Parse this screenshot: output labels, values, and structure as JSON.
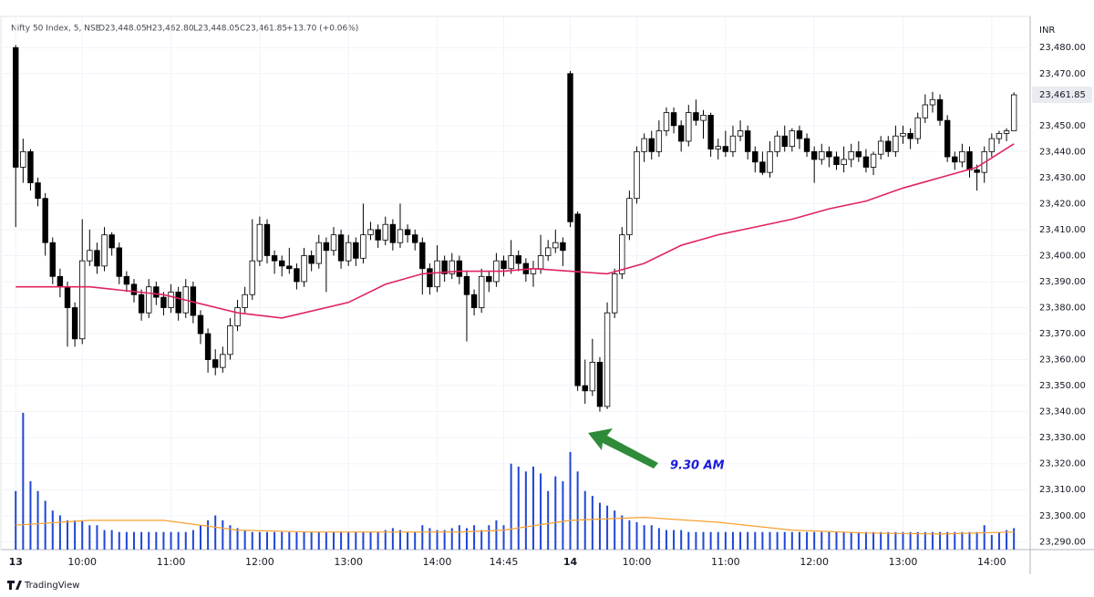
{
  "chart_data": {
    "type": "candlestick",
    "title": "Nifty 50 Index, 5, NSE",
    "header_values": [
      "O23,448.05",
      "H23,462.80",
      "L23,448.05",
      "C23,461.85",
      "+13.70 (+0.06%)"
    ],
    "currency": "INR",
    "footer": "TradingView",
    "annotation": {
      "text": "9.30 AM",
      "color": "#1a1adb",
      "arrow_color": "#2e8b3a"
    },
    "up_color": "#ffffff",
    "down_color": "#000000",
    "volume_color": "#2046d8",
    "xlim": [
      -2,
      137.2
    ],
    "ylim": [
      23288,
      23492
    ],
    "grid": true,
    "xticks": [
      {
        "value": 0,
        "label": "13"
      },
      {
        "value": 9,
        "label": "10:00"
      },
      {
        "value": 21,
        "label": "11:00"
      },
      {
        "value": 33,
        "label": "12:00"
      },
      {
        "value": 45,
        "label": "13:00"
      },
      {
        "value": 57,
        "label": "14:00"
      },
      {
        "value": 66,
        "label": "14:45"
      },
      {
        "value": 75,
        "label": "14"
      },
      {
        "value": 84,
        "label": "10:00"
      },
      {
        "value": 96,
        "label": "11:00"
      },
      {
        "value": 108,
        "label": "12:00"
      },
      {
        "value": 120,
        "label": "13:00"
      },
      {
        "value": 132,
        "label": "14:00"
      }
    ],
    "yticks": [
      {
        "value": 23290,
        "label": "23,290.00"
      },
      {
        "value": 23300,
        "label": "23,300.00"
      },
      {
        "value": 23310,
        "label": "23,310.00"
      },
      {
        "value": 23320,
        "label": "23,320.00"
      },
      {
        "value": 23330,
        "label": "23,330.00"
      },
      {
        "value": 23340,
        "label": "23,340.00"
      },
      {
        "value": 23350,
        "label": "23,350.00"
      },
      {
        "value": 23360,
        "label": "23,360.00"
      },
      {
        "value": 23370,
        "label": "23,370.00"
      },
      {
        "value": 23380,
        "label": "23,380.00"
      },
      {
        "value": 23390,
        "label": "23,390.00"
      },
      {
        "value": 23400,
        "label": "23,400.00"
      },
      {
        "value": 23410,
        "label": "23,410.00"
      },
      {
        "value": 23420,
        "label": "23,420.00"
      },
      {
        "value": 23430,
        "label": "23,430.00"
      },
      {
        "value": 23440,
        "label": "23,440.00"
      },
      {
        "value": 23450,
        "label": "23,450.00"
      },
      {
        "value": 23470,
        "label": "23,470.00"
      },
      {
        "value": 23480,
        "label": "23,480.00"
      }
    ],
    "last_price": {
      "value": 23461.85,
      "label": "23,461.85"
    },
    "ohlc": [
      [
        23480,
        23481,
        23411,
        23434
      ],
      [
        23434,
        23445,
        23428,
        23440
      ],
      [
        23440,
        23441,
        23425,
        23428
      ],
      [
        23428,
        23430,
        23419,
        23422
      ],
      [
        23422,
        23424,
        23400,
        23405
      ],
      [
        23405,
        23407,
        23389,
        23392
      ],
      [
        23392,
        23395,
        23384,
        23388
      ],
      [
        23388,
        23390,
        23365,
        23380
      ],
      [
        23380,
        23382,
        23365,
        23368
      ],
      [
        23368,
        23414,
        23366,
        23398
      ],
      [
        23398,
        23410,
        23396,
        23402
      ],
      [
        23402,
        23405,
        23393,
        23396
      ],
      [
        23396,
        23411,
        23394,
        23408
      ],
      [
        23408,
        23409,
        23400,
        23403
      ],
      [
        23403,
        23405,
        23389,
        23392
      ],
      [
        23392,
        23394,
        23386,
        23389
      ],
      [
        23389,
        23391,
        23382,
        23385
      ],
      [
        23385,
        23387,
        23375,
        23378
      ],
      [
        23378,
        23391,
        23376,
        23388
      ],
      [
        23388,
        23390,
        23381,
        23384
      ],
      [
        23384,
        23386,
        23377,
        23380
      ],
      [
        23380,
        23389,
        23378,
        23386
      ],
      [
        23386,
        23388,
        23375,
        23378
      ],
      [
        23378,
        23391,
        23376,
        23388
      ],
      [
        23388,
        23390,
        23374,
        23377
      ],
      [
        23377,
        23379,
        23366,
        23370
      ],
      [
        23370,
        23372,
        23355,
        23360
      ],
      [
        23360,
        23364,
        23354,
        23357
      ],
      [
        23357,
        23365,
        23355,
        23362
      ],
      [
        23362,
        23376,
        23360,
        23373
      ],
      [
        23373,
        23383,
        23371,
        23380
      ],
      [
        23380,
        23388,
        23378,
        23385
      ],
      [
        23385,
        23414,
        23383,
        23398
      ],
      [
        23398,
        23415,
        23396,
        23412
      ],
      [
        23412,
        23414,
        23397,
        23400
      ],
      [
        23400,
        23402,
        23393,
        23398
      ],
      [
        23398,
        23400,
        23392,
        23396
      ],
      [
        23396,
        23403,
        23393,
        23395
      ],
      [
        23395,
        23397,
        23387,
        23390
      ],
      [
        23390,
        23403,
        23388,
        23400
      ],
      [
        23400,
        23402,
        23394,
        23397
      ],
      [
        23397,
        23408,
        23395,
        23405
      ],
      [
        23405,
        23407,
        23386,
        23402
      ],
      [
        23402,
        23411,
        23400,
        23408
      ],
      [
        23408,
        23410,
        23395,
        23398
      ],
      [
        23398,
        23408,
        23396,
        23405
      ],
      [
        23405,
        23407,
        23396,
        23399
      ],
      [
        23399,
        23420,
        23397,
        23408
      ],
      [
        23408,
        23413,
        23406,
        23410
      ],
      [
        23410,
        23412,
        23403,
        23406
      ],
      [
        23406,
        23415,
        23404,
        23412
      ],
      [
        23412,
        23414,
        23402,
        23405
      ],
      [
        23405,
        23420,
        23403,
        23410
      ],
      [
        23410,
        23412,
        23405,
        23408
      ],
      [
        23408,
        23410,
        23402,
        23405
      ],
      [
        23405,
        23407,
        23385,
        23395
      ],
      [
        23395,
        23397,
        23385,
        23388
      ],
      [
        23388,
        23404,
        23386,
        23398
      ],
      [
        23398,
        23400,
        23390,
        23393
      ],
      [
        23393,
        23401,
        23391,
        23398
      ],
      [
        23398,
        23400,
        23389,
        23392
      ],
      [
        23392,
        23394,
        23367,
        23385
      ],
      [
        23385,
        23387,
        23377,
        23380
      ],
      [
        23380,
        23395,
        23378,
        23392
      ],
      [
        23392,
        23394,
        23386,
        23390
      ],
      [
        23390,
        23401,
        23388,
        23398
      ],
      [
        23398,
        23400,
        23392,
        23395
      ],
      [
        23395,
        23406,
        23393,
        23400
      ],
      [
        23400,
        23402,
        23394,
        23397
      ],
      [
        23397,
        23399,
        23390,
        23393
      ],
      [
        23393,
        23398,
        23388,
        23395
      ],
      [
        23395,
        23408,
        23393,
        23400
      ],
      [
        23400,
        23406,
        23398,
        23403
      ],
      [
        23403,
        23410,
        23401,
        23405
      ],
      [
        23405,
        23407,
        23396,
        23402
      ],
      [
        23470,
        23471,
        23411,
        23413
      ],
      [
        23416,
        23417,
        23348,
        23350
      ],
      [
        23350,
        23360,
        23343,
        23348
      ],
      [
        23348,
        23368,
        23346,
        23359
      ],
      [
        23359,
        23361,
        23340,
        23342
      ],
      [
        23342,
        23382,
        23341,
        23378
      ],
      [
        23378,
        23395,
        23376,
        23393
      ],
      [
        23393,
        23411,
        23391,
        23408
      ],
      [
        23408,
        23425,
        23406,
        23422
      ],
      [
        23422,
        23442,
        23420,
        23440
      ],
      [
        23440,
        23447,
        23436,
        23445
      ],
      [
        23445,
        23448,
        23437,
        23440
      ],
      [
        23440,
        23452,
        23438,
        23448
      ],
      [
        23448,
        23457,
        23446,
        23455
      ],
      [
        23455,
        23457,
        23447,
        23450
      ],
      [
        23450,
        23452,
        23440,
        23444
      ],
      [
        23444,
        23458,
        23442,
        23455
      ],
      [
        23455,
        23460,
        23450,
        23452
      ],
      [
        23452,
        23456,
        23445,
        23454
      ],
      [
        23454,
        23455,
        23438,
        23441
      ],
      [
        23441,
        23445,
        23437,
        23442
      ],
      [
        23442,
        23448,
        23438,
        23440
      ],
      [
        23440,
        23450,
        23438,
        23446
      ],
      [
        23446,
        23452,
        23444,
        23448
      ],
      [
        23448,
        23450,
        23437,
        23440
      ],
      [
        23440,
        23442,
        23432,
        23436
      ],
      [
        23436,
        23440,
        23431,
        23432
      ],
      [
        23432,
        23444,
        23430,
        23440
      ],
      [
        23440,
        23448,
        23438,
        23446
      ],
      [
        23446,
        23450,
        23440,
        23442
      ],
      [
        23442,
        23449,
        23440,
        23448
      ],
      [
        23448,
        23450,
        23441,
        23445
      ],
      [
        23445,
        23447,
        23438,
        23440
      ],
      [
        23440,
        23442,
        23428,
        23437
      ],
      [
        23437,
        23443,
        23435,
        23440
      ],
      [
        23440,
        23442,
        23434,
        23438
      ],
      [
        23438,
        23440,
        23433,
        23435
      ],
      [
        23435,
        23442,
        23432,
        23437
      ],
      [
        23437,
        23443,
        23434,
        23440
      ],
      [
        23440,
        23444,
        23436,
        23438
      ],
      [
        23438,
        23441,
        23432,
        23434
      ],
      [
        23434,
        23440,
        23431,
        23439
      ],
      [
        23439,
        23446,
        23437,
        23444
      ],
      [
        23444,
        23446,
        23438,
        23440
      ],
      [
        23440,
        23450,
        23438,
        23446
      ],
      [
        23446,
        23450,
        23443,
        23447
      ],
      [
        23447,
        23449,
        23441,
        23445
      ],
      [
        23445,
        23455,
        23443,
        23453
      ],
      [
        23453,
        23462,
        23451,
        23458
      ],
      [
        23458,
        23463,
        23455,
        23460
      ],
      [
        23460,
        23462,
        23450,
        23452
      ],
      [
        23452,
        23454,
        23436,
        23438
      ],
      [
        23438,
        23440,
        23433,
        23436
      ],
      [
        23436,
        23443,
        23434,
        23440
      ],
      [
        23440,
        23442,
        23430,
        23433
      ],
      [
        23433,
        23435,
        23425,
        23432
      ],
      [
        23432,
        23442,
        23428,
        23440
      ],
      [
        23440,
        23447,
        23438,
        23445
      ],
      [
        23445,
        23448,
        23443,
        23447
      ],
      [
        23447,
        23449,
        23444,
        23448
      ],
      [
        23448.05,
        23462.8,
        23448.05,
        23461.85
      ]
    ],
    "volume": [
      60,
      140,
      70,
      60,
      50,
      40,
      35,
      30,
      30,
      30,
      25,
      25,
      20,
      20,
      18,
      18,
      18,
      18,
      18,
      18,
      18,
      18,
      18,
      18,
      20,
      25,
      30,
      35,
      30,
      25,
      22,
      20,
      18,
      18,
      18,
      18,
      18,
      18,
      18,
      18,
      18,
      18,
      18,
      18,
      18,
      18,
      18,
      18,
      18,
      18,
      20,
      22,
      20,
      18,
      18,
      25,
      22,
      20,
      20,
      22,
      25,
      22,
      25,
      20,
      25,
      30,
      25,
      88,
      85,
      80,
      85,
      78,
      60,
      75,
      70,
      100,
      80,
      60,
      55,
      48,
      45,
      40,
      35,
      30,
      28,
      25,
      25,
      22,
      20,
      20,
      20,
      18,
      18,
      18,
      18,
      18,
      18,
      18,
      18,
      18,
      18,
      18,
      18,
      18,
      18,
      18,
      18,
      18,
      18,
      18,
      18,
      18,
      18,
      18,
      18,
      18,
      18,
      18,
      18,
      18,
      18,
      18,
      18,
      18,
      18,
      18,
      18,
      18,
      18,
      18,
      18,
      25,
      15,
      18,
      20,
      22
    ],
    "ma": {
      "color": "#e0245e",
      "x": [
        0,
        10,
        20,
        30,
        36,
        45,
        50,
        55,
        60,
        66,
        70,
        75,
        80,
        85,
        90,
        95,
        100,
        105,
        110,
        115,
        120,
        125,
        130,
        135
      ],
      "values": [
        23388,
        23388,
        23385,
        23378,
        23376,
        23382,
        23389,
        23393,
        23394,
        23394,
        23395,
        23394,
        23393,
        23397,
        23404,
        23408,
        23411,
        23414,
        23418,
        23421,
        23426,
        23430,
        23434,
        23443
      ]
    },
    "volume_ma": {
      "color": "#f7a12f",
      "x": [
        0,
        10,
        20,
        30,
        40,
        50,
        60,
        66,
        75,
        85,
        95,
        105,
        115,
        125,
        135
      ],
      "values": [
        25,
        30,
        30,
        20,
        18,
        18,
        18,
        20,
        30,
        33,
        28,
        20,
        17,
        16,
        18
      ]
    }
  }
}
